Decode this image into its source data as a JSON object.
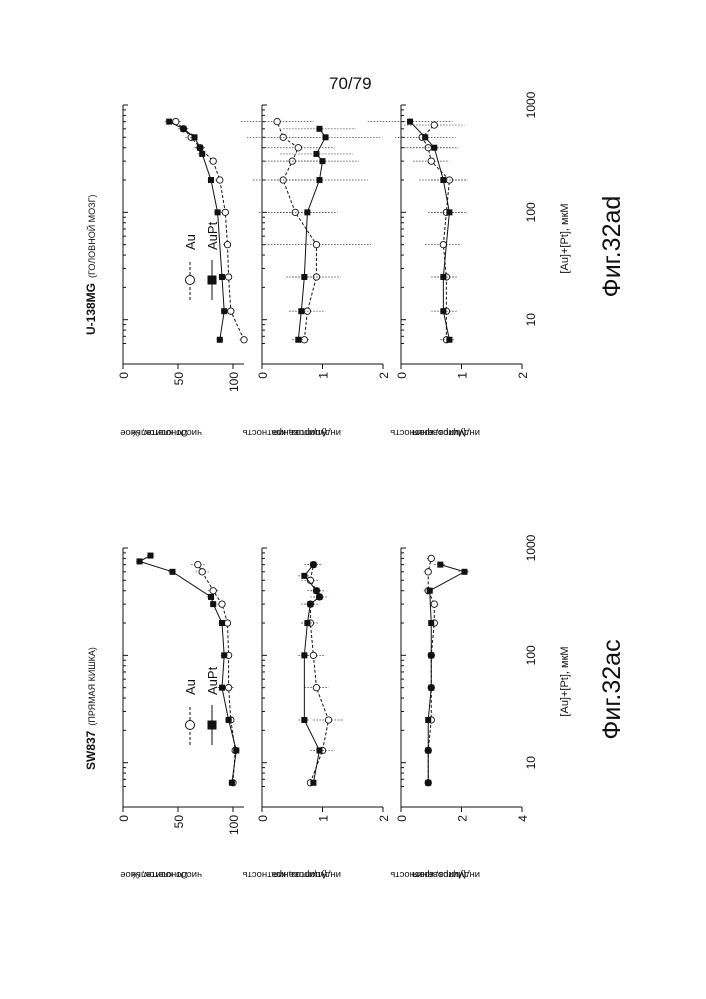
{
  "page_number": "70/79",
  "shared": {
    "x_axis_title": "[Au]+[Pt], мкМ",
    "x_ticks": [
      "10",
      "100",
      "1000"
    ],
    "legend": [
      {
        "label": "Au",
        "marker": "open-circle",
        "line": "dashed"
      },
      {
        "label": "AuPt",
        "marker": "filled-square",
        "line": "solid"
      }
    ],
    "y_titles": {
      "viability": [
        "Относительное",
        "число клеток, %"
      ],
      "apoptosis": [
        "Апоптоз, кратность",
        "индуцирования"
      ],
      "mitosis": [
        "Митоз, кратность",
        "индуцирования"
      ]
    }
  },
  "figures": [
    {
      "key": "ac",
      "cell_line": "SW837",
      "tissue": "(ПРЯМАЯ КИШКА)",
      "caption": "Фиг.32ac"
    },
    {
      "key": "ad",
      "cell_line": "U-138MG",
      "tissue": "(ГОЛОВНОЙ МОЗГ)",
      "caption": "Фиг.32ad"
    }
  ],
  "chart_data": [
    {
      "type": "line",
      "figure": "Фиг.32ac",
      "panel": "viability",
      "x_log": true,
      "xlim": [
        5,
        1000
      ],
      "ylim": [
        0,
        110
      ],
      "y_ticks": [
        0,
        50,
        100
      ],
      "series": [
        {
          "name": "Au",
          "x": [
            6.5,
            13,
            25,
            50,
            100,
            200,
            300,
            400,
            600,
            700
          ],
          "y": [
            100,
            102,
            98,
            96,
            96,
            95,
            90,
            82,
            72,
            68
          ],
          "err": [
            3,
            3,
            4,
            5,
            3,
            3,
            4,
            5,
            6,
            6
          ]
        },
        {
          "name": "AuPt",
          "x": [
            6.5,
            13,
            25,
            50,
            100,
            200,
            300,
            350,
            600,
            750,
            850
          ],
          "y": [
            99,
            103,
            96,
            90,
            92,
            90,
            82,
            80,
            45,
            15,
            25
          ],
          "err": [
            3,
            3,
            3,
            4,
            3,
            3,
            3,
            4,
            4,
            3,
            3
          ]
        }
      ]
    },
    {
      "type": "line",
      "figure": "Фиг.32ac",
      "panel": "apoptosis",
      "x_log": true,
      "xlim": [
        5,
        1000
      ],
      "ylim": [
        0,
        2
      ],
      "y_ticks": [
        0,
        1,
        2
      ],
      "series": [
        {
          "name": "Au",
          "x": [
            6.5,
            13,
            25,
            50,
            100,
            200,
            300,
            350,
            400,
            500,
            700
          ],
          "y": [
            0.8,
            1.0,
            1.1,
            0.9,
            0.85,
            0.8,
            0.8,
            0.95,
            0.9,
            0.8,
            0.85
          ],
          "err": [
            0.05,
            0.2,
            0.25,
            0.2,
            0.2,
            0.15,
            0.15,
            0.15,
            0.15,
            0.15,
            0.15
          ]
        },
        {
          "name": "AuPt",
          "x": [
            6.5,
            13,
            25,
            100,
            200,
            300,
            350,
            400,
            550,
            700
          ],
          "y": [
            0.85,
            0.95,
            0.7,
            0.7,
            0.75,
            0.8,
            0.95,
            0.9,
            0.7,
            0.85
          ],
          "err": [
            0.05,
            0.1,
            0.1,
            0.1,
            0.1,
            0.1,
            0.1,
            0.1,
            0.1,
            0.1
          ]
        }
      ]
    },
    {
      "type": "line",
      "figure": "Фиг.32ac",
      "panel": "mitosis",
      "x_log": true,
      "xlim": [
        5,
        1000
      ],
      "ylim": [
        0,
        4
      ],
      "y_ticks": [
        0,
        2,
        4
      ],
      "series": [
        {
          "name": "Au",
          "x": [
            6.5,
            13,
            25,
            50,
            100,
            200,
            300,
            400,
            600,
            800
          ],
          "y": [
            0.9,
            0.9,
            1.0,
            1.0,
            1.0,
            1.1,
            1.1,
            0.9,
            0.9,
            1.0
          ],
          "err": [
            0.1,
            0.1,
            0.1,
            0.1,
            0.1,
            0.15,
            0.15,
            0.15,
            0.15,
            0.15
          ]
        },
        {
          "name": "AuPt",
          "x": [
            6.5,
            13,
            25,
            50,
            100,
            200,
            400,
            600,
            700
          ],
          "y": [
            0.9,
            0.9,
            0.9,
            1.0,
            1.0,
            1.0,
            0.95,
            2.1,
            1.3
          ],
          "err": [
            0.1,
            0.1,
            0.1,
            0.1,
            0.1,
            0.1,
            0.1,
            0.2,
            0.2
          ]
        }
      ]
    },
    {
      "type": "line",
      "figure": "Фиг.32ad",
      "panel": "viability",
      "x_log": true,
      "xlim": [
        5,
        1000
      ],
      "ylim": [
        0,
        110
      ],
      "y_ticks": [
        0,
        50,
        100
      ],
      "series": [
        {
          "name": "Au",
          "x": [
            6.5,
            12,
            25,
            50,
            100,
            200,
            300,
            400,
            500,
            600,
            700
          ],
          "y": [
            110,
            98,
            96,
            95,
            93,
            88,
            82,
            70,
            62,
            55,
            48
          ],
          "err": [
            4,
            4,
            4,
            4,
            4,
            4,
            4,
            5,
            5,
            5,
            5
          ]
        },
        {
          "name": "AuPt",
          "x": [
            6.5,
            12,
            25,
            100,
            200,
            350,
            400,
            500,
            600,
            700
          ],
          "y": [
            88,
            92,
            90,
            86,
            80,
            72,
            70,
            65,
            55,
            42
          ],
          "err": [
            3,
            3,
            3,
            3,
            3,
            4,
            4,
            4,
            4,
            4
          ]
        }
      ]
    },
    {
      "type": "line",
      "figure": "Фиг.32ad",
      "panel": "apoptosis",
      "x_log": true,
      "xlim": [
        5,
        1000
      ],
      "ylim": [
        0,
        2
      ],
      "y_ticks": [
        0,
        1,
        2
      ],
      "series": [
        {
          "name": "Au",
          "x": [
            6.5,
            12,
            25,
            50,
            100,
            200,
            300,
            400,
            500,
            700
          ],
          "y": [
            0.7,
            0.75,
            0.9,
            0.9,
            0.55,
            0.35,
            0.5,
            0.6,
            0.35,
            0.25
          ],
          "err": [
            0.1,
            0.3,
            0.4,
            0.9,
            0.6,
            0.5,
            0.5,
            0.6,
            0.6,
            0.6
          ]
        },
        {
          "name": "AuPt",
          "x": [
            6.5,
            12,
            25,
            100,
            200,
            300,
            350,
            500,
            600
          ],
          "y": [
            0.6,
            0.65,
            0.7,
            0.75,
            0.95,
            1.0,
            0.9,
            1.05,
            0.95
          ],
          "err": [
            0.1,
            0.2,
            0.3,
            0.5,
            0.8,
            0.6,
            0.6,
            0.9,
            0.6
          ]
        }
      ]
    },
    {
      "type": "line",
      "figure": "Фиг.32ad",
      "panel": "mitosis",
      "x_log": true,
      "xlim": [
        5,
        1000
      ],
      "ylim": [
        0,
        2
      ],
      "y_ticks": [
        0,
        1,
        2
      ],
      "series": [
        {
          "name": "Au",
          "x": [
            6.5,
            12,
            25,
            50,
            100,
            200,
            300,
            400,
            500,
            650
          ],
          "y": [
            0.75,
            0.75,
            0.75,
            0.7,
            0.75,
            0.8,
            0.5,
            0.45,
            0.35,
            0.55
          ],
          "err": [
            0.1,
            0.2,
            0.2,
            0.3,
            0.3,
            0.3,
            0.3,
            0.4,
            0.4,
            0.5
          ]
        },
        {
          "name": "AuPt",
          "x": [
            6.5,
            12,
            25,
            100,
            200,
            400,
            500,
            700
          ],
          "y": [
            0.8,
            0.7,
            0.7,
            0.8,
            0.7,
            0.55,
            0.4,
            0.15
          ],
          "err": [
            0.1,
            0.2,
            0.2,
            0.3,
            0.4,
            0.4,
            0.5,
            0.7
          ]
        }
      ]
    }
  ]
}
